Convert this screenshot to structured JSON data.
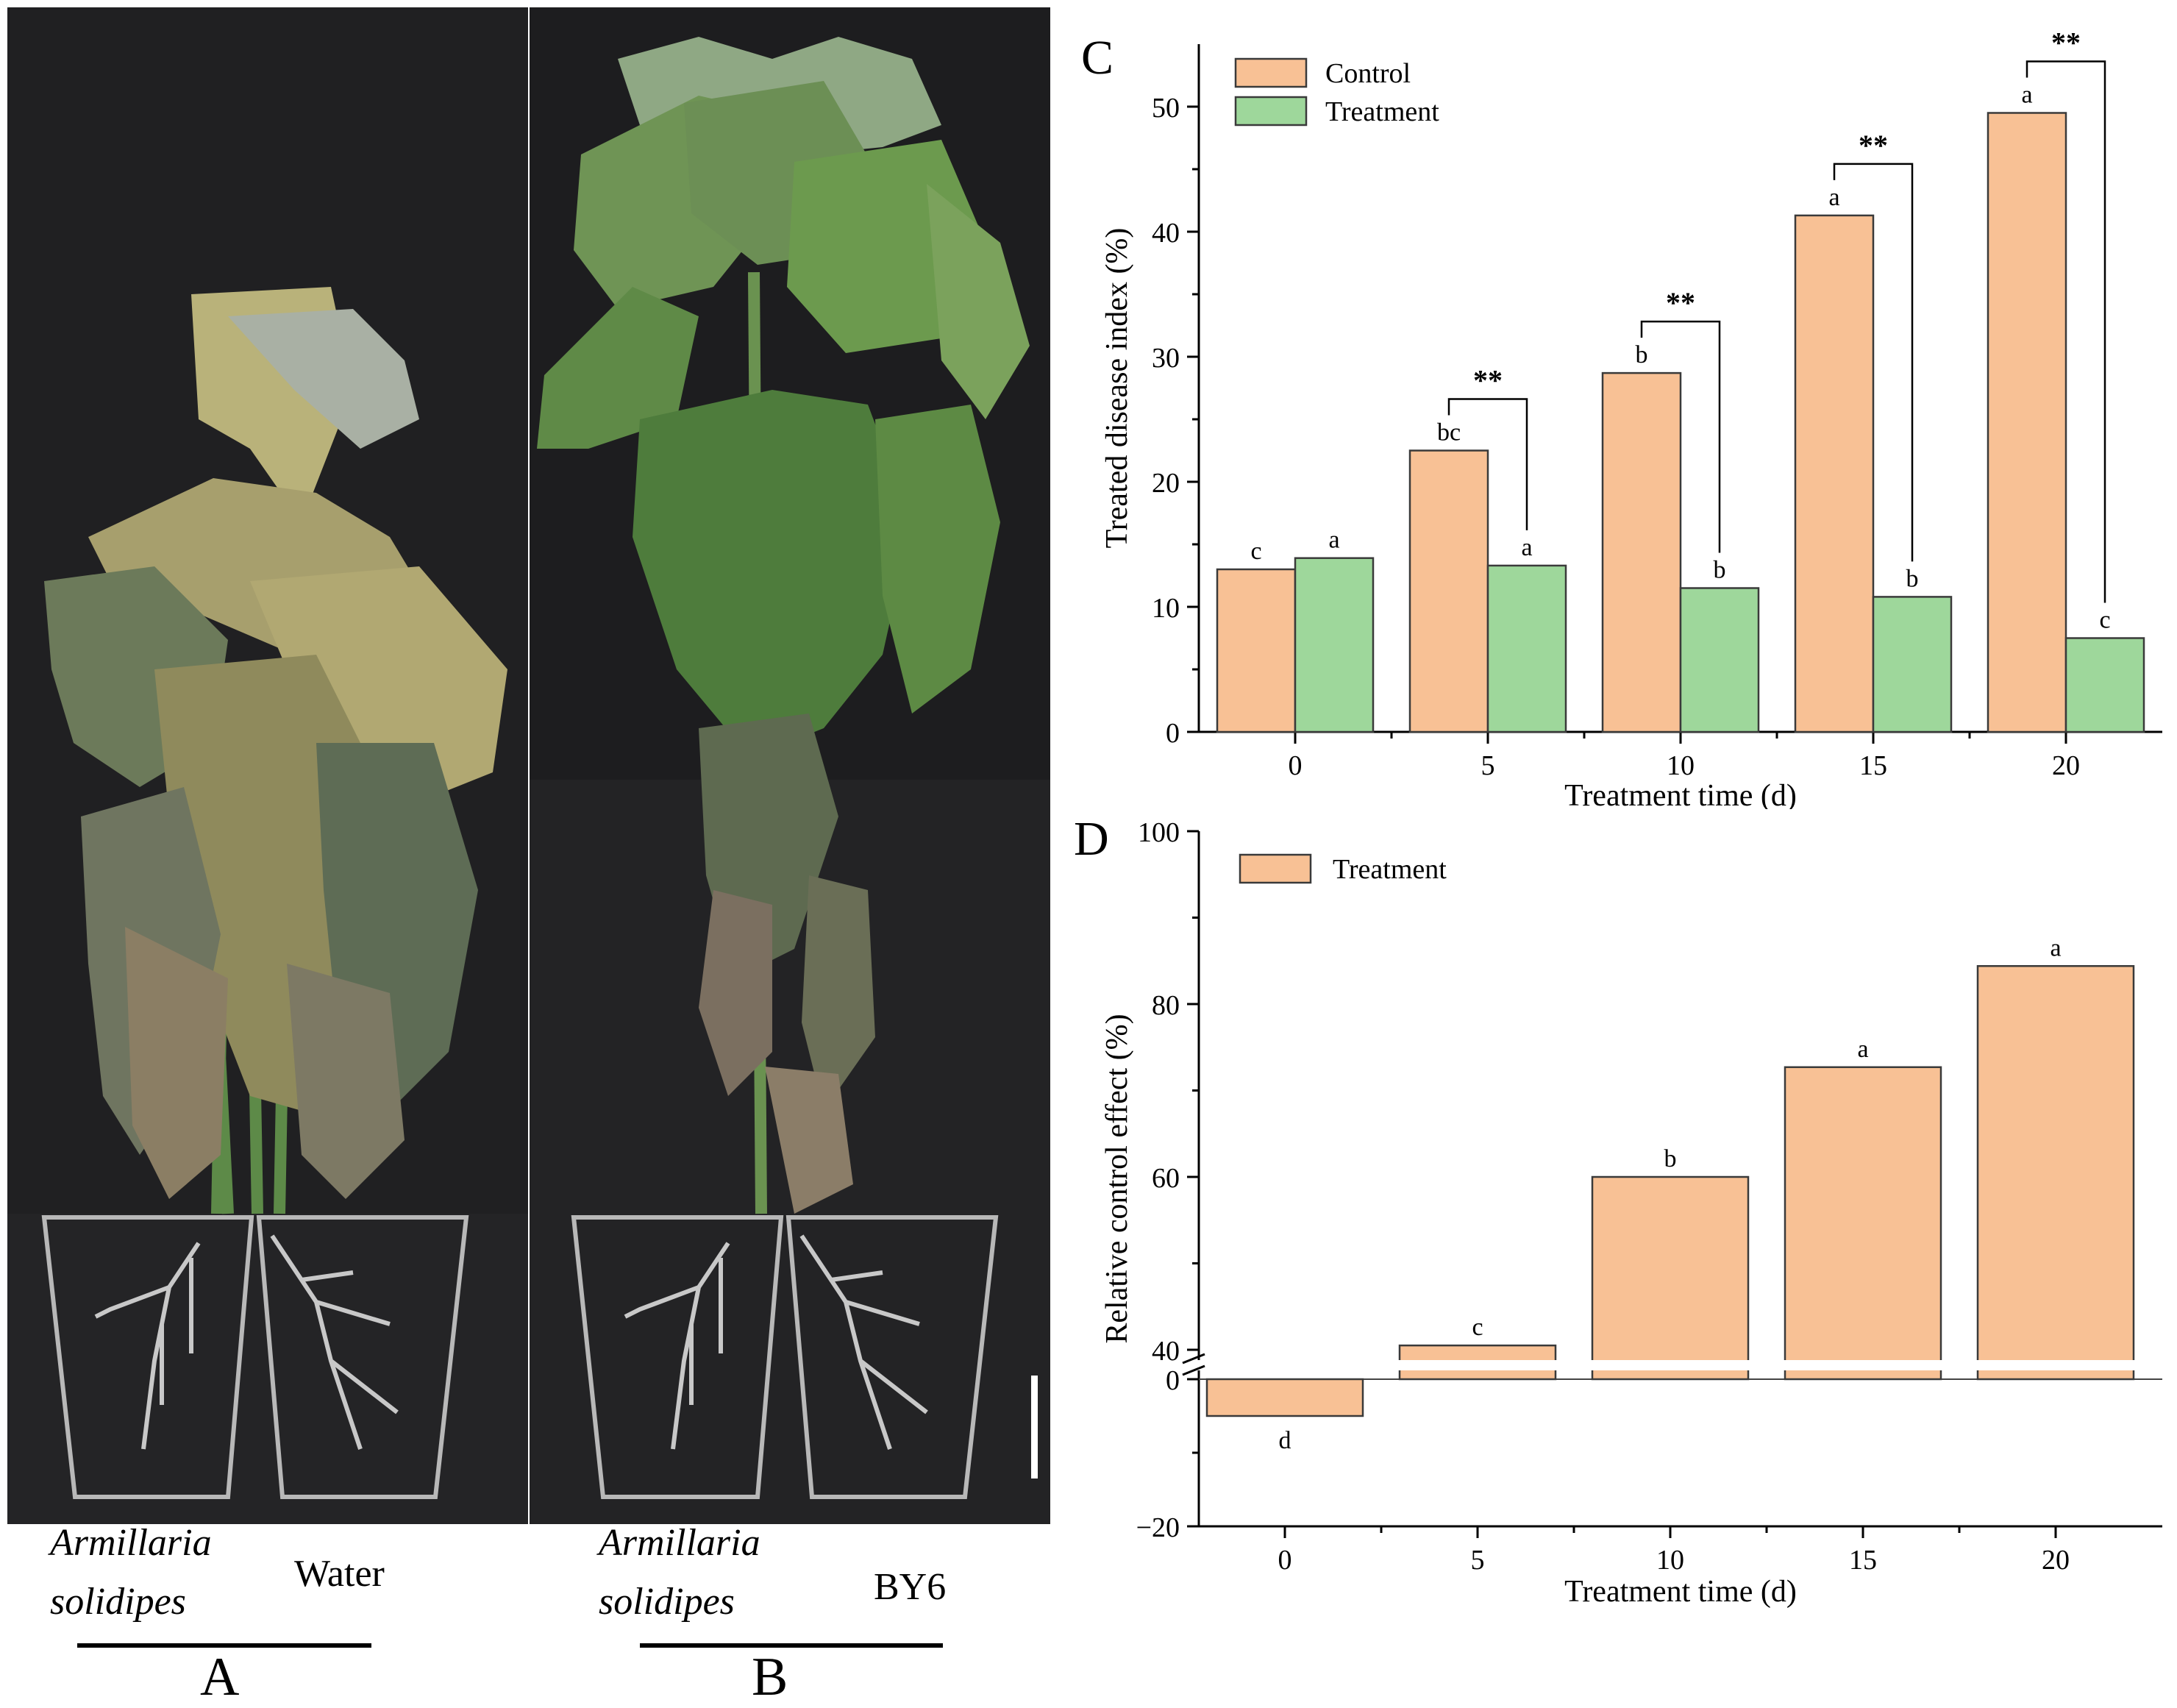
{
  "figure": {
    "panel_a": {
      "inoculum_line1": "Armillaria",
      "inoculum_line2": "solidipes",
      "treatment": "Water",
      "letter": "A"
    },
    "panel_b": {
      "inoculum_line1": "Armillaria",
      "inoculum_line2": "solidipes",
      "treatment": "BY6",
      "letter": "B"
    }
  },
  "chart_data": [
    {
      "panel": "C",
      "type": "bar",
      "xlabel": "Treatment time (d)",
      "ylabel": "Treated disease index (%)",
      "ylim": [
        0,
        55
      ],
      "yticks": [
        0,
        10,
        20,
        30,
        40,
        50
      ],
      "categories": [
        "0",
        "5",
        "10",
        "15",
        "20"
      ],
      "legend_position": "top-left",
      "series": [
        {
          "name": "Control",
          "color": "#f8c195",
          "values": [
            13.0,
            22.5,
            28.7,
            41.3,
            49.5
          ],
          "labels": [
            "c",
            "bc",
            "b",
            "a",
            "a"
          ]
        },
        {
          "name": "Treatment",
          "color": "#9ed79b",
          "values": [
            13.9,
            13.3,
            11.5,
            10.8,
            7.5
          ],
          "labels": [
            "a",
            "a",
            "b",
            "b",
            "c"
          ]
        }
      ],
      "significance": [
        "",
        "**",
        "**",
        "**",
        "**"
      ]
    },
    {
      "panel": "D",
      "type": "bar",
      "xlabel": "Treatment time (d)",
      "ylabel": "Relative control  effect (%)",
      "ylim": [
        -20,
        100
      ],
      "axis_break": [
        0,
        40
      ],
      "yticks": [
        -20,
        0,
        40,
        60,
        80,
        100
      ],
      "categories": [
        "0",
        "5",
        "10",
        "15",
        "20"
      ],
      "legend_position": "top-left",
      "series": [
        {
          "name": "Treatment",
          "color": "#f8c195",
          "values": [
            -5,
            40.5,
            60,
            72.7,
            84.4
          ],
          "labels": [
            "d",
            "c",
            "b",
            "a",
            "a"
          ]
        }
      ]
    }
  ]
}
